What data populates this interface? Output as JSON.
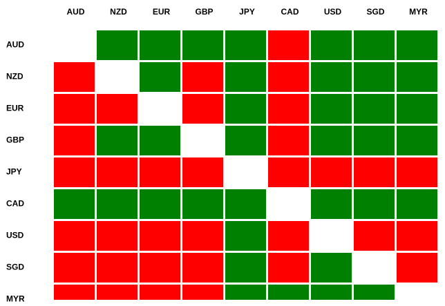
{
  "matrix": {
    "columns": [
      "AUD",
      "NZD",
      "EUR",
      "GBP",
      "JPY",
      "CAD",
      "USD",
      "SGD",
      "MYR"
    ],
    "rows": [
      {
        "label": "AUD",
        "cells": [
          "#ffffff",
          "#008000",
          "#008000",
          "#008000",
          "#008000",
          "#ff0000",
          "#008000",
          "#008000",
          "#008000"
        ]
      },
      {
        "label": "NZD",
        "cells": [
          "#ff0000",
          "#ffffff",
          "#008000",
          "#ff0000",
          "#008000",
          "#ff0000",
          "#008000",
          "#008000",
          "#008000"
        ]
      },
      {
        "label": "EUR",
        "cells": [
          "#ff0000",
          "#ff0000",
          "#ffffff",
          "#ff0000",
          "#008000",
          "#ff0000",
          "#008000",
          "#008000",
          "#008000"
        ]
      },
      {
        "label": "GBP",
        "cells": [
          "#ff0000",
          "#008000",
          "#008000",
          "#ffffff",
          "#008000",
          "#ff0000",
          "#008000",
          "#008000",
          "#008000"
        ]
      },
      {
        "label": "JPY",
        "cells": [
          "#ff0000",
          "#ff0000",
          "#ff0000",
          "#ff0000",
          "#ffffff",
          "#ff0000",
          "#ff0000",
          "#ff0000",
          "#ff0000"
        ]
      },
      {
        "label": "CAD",
        "cells": [
          "#008000",
          "#008000",
          "#008000",
          "#008000",
          "#008000",
          "#ffffff",
          "#008000",
          "#008000",
          "#008000"
        ]
      },
      {
        "label": "USD",
        "cells": [
          "#ff0000",
          "#ff0000",
          "#ff0000",
          "#ff0000",
          "#008000",
          "#ff0000",
          "#ffffff",
          "#ff0000",
          "#ff0000"
        ]
      },
      {
        "label": "SGD",
        "cells": [
          "#ff0000",
          "#ff0000",
          "#ff0000",
          "#ff0000",
          "#008000",
          "#ff0000",
          "#008000",
          "#ffffff",
          "#ff0000"
        ]
      },
      {
        "label": "MYR",
        "cells": [
          "#ff0000",
          "#ff0000",
          "#ff0000",
          "#ff0000",
          "#008000",
          "#008000",
          "#008000",
          "#008000",
          "#ffffff"
        ]
      }
    ]
  }
}
